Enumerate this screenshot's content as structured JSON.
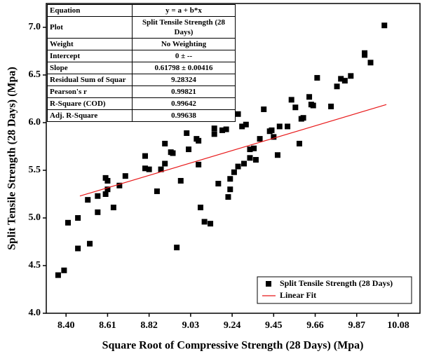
{
  "chart_data": {
    "type": "scatter",
    "xlabel": "Square Root of Compressive Strength (28 Days) (Mpa)",
    "ylabel": "Split Tensile Strength (28 Days) (Mpa)",
    "xlim": [
      8.3,
      10.19
    ],
    "ylim": [
      4.0,
      7.25
    ],
    "xticks": [
      {
        "value": 8.4,
        "label": "8.40"
      },
      {
        "value": 8.61,
        "label": "8.61"
      },
      {
        "value": 8.82,
        "label": "8.82"
      },
      {
        "value": 9.03,
        "label": "9.03"
      },
      {
        "value": 9.24,
        "label": "9.24"
      },
      {
        "value": 9.45,
        "label": "9.45"
      },
      {
        "value": 9.66,
        "label": "9.66"
      },
      {
        "value": 9.87,
        "label": "9.87"
      },
      {
        "value": 10.08,
        "label": "10.08"
      }
    ],
    "yticks": [
      {
        "value": 4,
        "label": "4.0"
      },
      4.5,
      {
        "value": 5,
        "label": "5.0"
      },
      5.5,
      {
        "value": 6,
        "label": "6.0"
      },
      6.5,
      {
        "value": 7,
        "label": "7.0"
      }
    ],
    "legend_position": "lower right",
    "series": [
      {
        "name": "Split Tensile Strength (28 Days)",
        "color": "#000000",
        "marker": "square",
        "x": [
          8.36,
          8.39,
          8.41,
          8.46,
          8.46,
          8.51,
          8.52,
          8.56,
          8.56,
          8.6,
          8.6,
          8.61,
          8.61,
          8.64,
          8.67,
          8.7,
          8.8,
          8.8,
          8.82,
          8.86,
          8.88,
          8.9,
          8.9,
          8.93,
          8.94,
          8.96,
          8.98,
          9.01,
          9.02,
          9.06,
          9.07,
          9.07,
          9.08,
          9.1,
          9.13,
          9.15,
          9.15,
          9.17,
          9.19,
          9.21,
          9.22,
          9.23,
          9.23,
          9.25,
          9.27,
          9.27,
          9.29,
          9.3,
          9.31,
          9.33,
          9.33,
          9.35,
          9.36,
          9.38,
          9.4,
          9.43,
          9.44,
          9.45,
          9.47,
          9.48,
          9.52,
          9.54,
          9.56,
          9.58,
          9.59,
          9.6,
          9.63,
          9.64,
          9.65,
          9.67,
          9.74,
          9.77,
          9.79,
          9.81,
          9.84,
          9.91,
          9.91,
          9.94,
          10.01
        ],
        "values": [
          4.4,
          4.45,
          4.95,
          5.0,
          4.68,
          5.19,
          4.73,
          5.06,
          5.23,
          5.42,
          5.25,
          5.39,
          5.3,
          5.11,
          5.34,
          5.44,
          5.65,
          5.52,
          5.51,
          5.28,
          5.51,
          5.57,
          5.78,
          5.69,
          5.68,
          4.69,
          5.39,
          5.89,
          5.72,
          5.83,
          5.56,
          5.81,
          5.11,
          4.96,
          4.94,
          5.94,
          5.88,
          5.36,
          5.92,
          5.93,
          5.22,
          5.3,
          5.41,
          5.48,
          5.54,
          6.09,
          5.96,
          5.57,
          5.98,
          5.63,
          5.72,
          5.73,
          5.61,
          5.83,
          6.14,
          5.91,
          5.92,
          5.85,
          5.66,
          5.96,
          5.96,
          6.24,
          6.16,
          5.78,
          6.04,
          6.05,
          6.27,
          6.19,
          6.18,
          6.47,
          6.17,
          6.38,
          6.46,
          6.44,
          6.49,
          6.73,
          6.71,
          6.63,
          7.02
        ]
      },
      {
        "name": "Linear Fit",
        "color": "#e8191a",
        "marker": "line",
        "x": [
          8.47,
          10.02
        ],
        "values": [
          5.23,
          6.19
        ]
      }
    ],
    "fit_table": {
      "rows": [
        [
          "Equation",
          "y = a + b*x"
        ],
        [
          "Plot",
          "Split Tensile Strength (28 Days)"
        ],
        [
          "Weight",
          "No Weighting"
        ],
        [
          "Intercept",
          "0 ± --"
        ],
        [
          "Slope",
          "0.61798 ± 0.00416"
        ],
        [
          "Residual Sum of Squar",
          "9.28324"
        ],
        [
          "Pearson's r",
          "0.99821"
        ],
        [
          "R-Square (COD)",
          "0.99642"
        ],
        [
          "Adj. R-Square",
          "0.99638"
        ]
      ]
    }
  }
}
